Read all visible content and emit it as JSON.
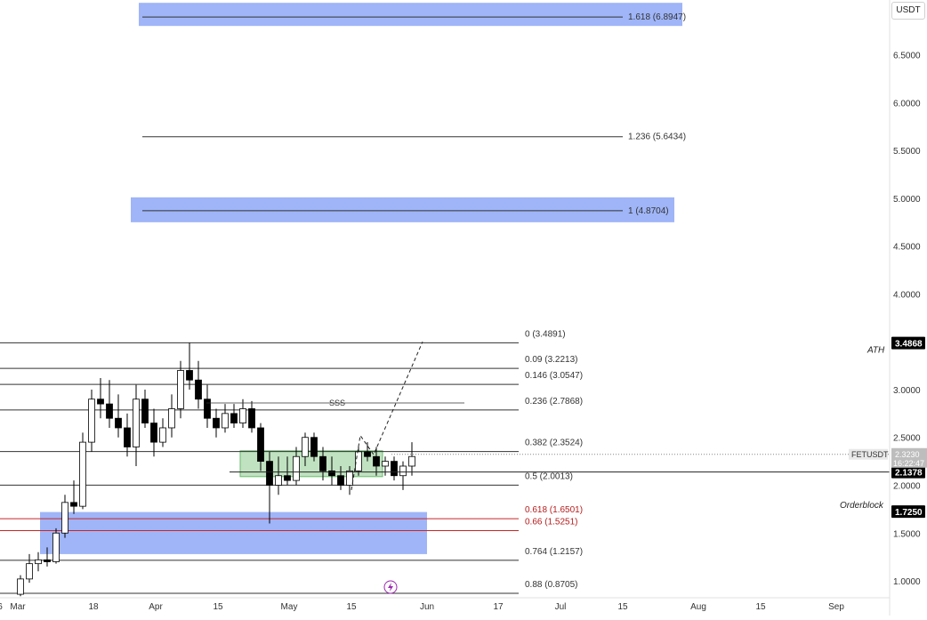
{
  "symbol": "FETUSDT",
  "currency": "USDT",
  "colors": {
    "up": "#ffffff",
    "down": "#000000",
    "zone": "#7f9cf5",
    "green_zone": "#a5d6a7",
    "red_line": "#c62828"
  },
  "current_price": "2.3230",
  "countdown": "16:22:47",
  "tags": {
    "ath": "3.4868",
    "support": "2.1378",
    "orderblock": "1.7250"
  },
  "annotations": {
    "ath": "ATH",
    "orderblock": "Orderblock",
    "sss": "SSS"
  },
  "chart_data": {
    "type": "candlestick",
    "title": "",
    "y_axis": {
      "range": [
        0.87,
        6.98
      ],
      "ticks": [
        "1.0000",
        "1.5000",
        "2.0000",
        "2.5000",
        "3.0000",
        "3.5000",
        "4.0000",
        "4.5000",
        "5.0000",
        "5.5000",
        "6.0000",
        "6.5000"
      ]
    },
    "x_axis": {
      "start": "2024-02-26",
      "end": "2024-09-13",
      "ticks": [
        {
          "date": "2024-02-26",
          "label": "6"
        },
        {
          "date": "2024-03-01",
          "label": "Mar"
        },
        {
          "date": "2024-03-18",
          "label": "18"
        },
        {
          "date": "2024-04-01",
          "label": "Apr"
        },
        {
          "date": "2024-04-15",
          "label": "15"
        },
        {
          "date": "2024-05-01",
          "label": "May"
        },
        {
          "date": "2024-05-15",
          "label": "15"
        },
        {
          "date": "2024-06-01",
          "label": "Jun"
        },
        {
          "date": "2024-06-17",
          "label": "17"
        },
        {
          "date": "2024-07-01",
          "label": "Jul"
        },
        {
          "date": "2024-07-15",
          "label": "15"
        },
        {
          "date": "2024-08-01",
          "label": "Aug"
        },
        {
          "date": "2024-08-15",
          "label": "15"
        },
        {
          "date": "2024-09-01",
          "label": "Sep"
        }
      ]
    },
    "candles": {
      "start_date": "2024-02-26",
      "ohlc": [
        [
          0.86,
          1.06,
          0.84,
          1.02
        ],
        [
          1.02,
          1.28,
          0.98,
          1.18
        ],
        [
          1.18,
          1.3,
          1.1,
          1.22
        ],
        [
          1.22,
          1.35,
          1.15,
          1.2
        ],
        [
          1.2,
          1.55,
          1.18,
          1.5
        ],
        [
          1.5,
          1.9,
          1.45,
          1.82
        ],
        [
          1.82,
          2.05,
          1.7,
          1.78
        ],
        [
          1.78,
          2.55,
          1.75,
          2.45
        ],
        [
          2.45,
          3.0,
          2.35,
          2.9
        ],
        [
          2.9,
          3.12,
          2.7,
          2.85
        ],
        [
          2.85,
          3.1,
          2.6,
          2.7
        ],
        [
          2.7,
          2.95,
          2.5,
          2.6
        ],
        [
          2.6,
          2.75,
          2.3,
          2.4
        ],
        [
          2.4,
          3.05,
          2.2,
          2.9
        ],
        [
          2.9,
          3.0,
          2.6,
          2.65
        ],
        [
          2.65,
          2.8,
          2.3,
          2.45
        ],
        [
          2.45,
          2.7,
          2.4,
          2.6
        ],
        [
          2.6,
          2.95,
          2.5,
          2.8
        ],
        [
          2.8,
          3.3,
          2.7,
          3.2
        ],
        [
          3.2,
          3.49,
          3.0,
          3.1
        ],
        [
          3.1,
          3.3,
          2.8,
          2.9
        ],
        [
          2.9,
          3.05,
          2.6,
          2.7
        ],
        [
          2.7,
          2.8,
          2.5,
          2.6
        ],
        [
          2.6,
          2.85,
          2.55,
          2.75
        ],
        [
          2.75,
          2.85,
          2.6,
          2.65
        ],
        [
          2.65,
          2.9,
          2.6,
          2.8
        ],
        [
          2.8,
          2.88,
          2.55,
          2.6
        ],
        [
          2.6,
          2.65,
          2.15,
          2.25
        ],
        [
          2.25,
          2.35,
          1.6,
          2.0
        ],
        [
          2.0,
          2.3,
          1.9,
          2.1
        ],
        [
          2.1,
          2.3,
          2.0,
          2.05
        ],
        [
          2.05,
          2.4,
          2.0,
          2.3
        ],
        [
          2.3,
          2.55,
          2.2,
          2.5
        ],
        [
          2.5,
          2.55,
          2.25,
          2.3
        ],
        [
          2.3,
          2.4,
          2.05,
          2.15
        ],
        [
          2.15,
          2.3,
          2.0,
          2.1
        ],
        [
          2.1,
          2.2,
          1.95,
          2.0
        ],
        [
          2.0,
          2.2,
          1.9,
          2.15
        ],
        [
          2.15,
          2.4,
          2.1,
          2.35
        ],
        [
          2.35,
          2.45,
          2.25,
          2.3
        ],
        [
          2.3,
          2.4,
          2.1,
          2.2
        ],
        [
          2.2,
          2.3,
          2.1,
          2.25
        ],
        [
          2.25,
          2.3,
          2.05,
          2.1
        ],
        [
          2.1,
          2.25,
          1.95,
          2.2
        ],
        [
          2.2,
          2.45,
          2.1,
          2.3
        ]
      ]
    },
    "fib_levels": [
      {
        "label": "1.618 (6.8947)",
        "value": 6.8947,
        "zone": true
      },
      {
        "label": "1.236 (5.6434)",
        "value": 5.6434
      },
      {
        "label": "1 (4.8704)",
        "value": 4.8704,
        "zone": true
      },
      {
        "label": "0 (3.4891)",
        "value": 3.4891
      },
      {
        "label": "0.09 (3.2213)",
        "value": 3.2213
      },
      {
        "label": "0.146 (3.0547)",
        "value": 3.0547
      },
      {
        "label": "0.236 (2.7868)",
        "value": 2.7868
      },
      {
        "label": "0.382 (2.3524)",
        "value": 2.3524
      },
      {
        "label": "0.5 (2.0013)",
        "value": 2.0013
      },
      {
        "label": "0.618 (1.6501)",
        "value": 1.6501,
        "red": true
      },
      {
        "label": "0.66 (1.5251)",
        "value": 1.5251,
        "red": true
      },
      {
        "label": "0.764 (1.2157)",
        "value": 1.2157
      },
      {
        "label": "0.88 (0.8705)",
        "value": 0.8705
      }
    ],
    "zones": [
      {
        "name": "orderblock-zone",
        "from": "2024-03-06",
        "to": "2024-06-01",
        "low": 1.28,
        "high": 1.72,
        "color": "#7f9cf5"
      },
      {
        "name": "consolidation-zone",
        "from": "2024-04-20",
        "to": "2024-05-22",
        "low": 2.09,
        "high": 2.36,
        "color": "#a5d6a7"
      }
    ],
    "projection": [
      {
        "date": "2024-05-15",
        "value": 1.95
      },
      {
        "date": "2024-05-17",
        "value": 2.52
      },
      {
        "date": "2024-05-20",
        "value": 2.32
      },
      {
        "date": "2024-05-31",
        "value": 3.5
      }
    ]
  }
}
